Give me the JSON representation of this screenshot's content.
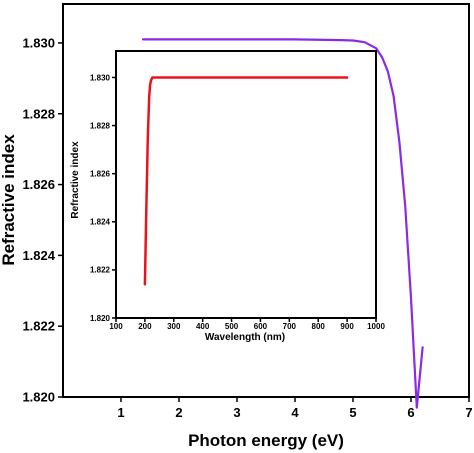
{
  "chart_data": [
    {
      "type": "line",
      "xlabel": "Photon energy (eV)",
      "ylabel": "Refractive index",
      "xlim": [
        0,
        7
      ],
      "ylim": [
        1.82,
        1.8311
      ],
      "x_ticks": [
        "1",
        "2",
        "3",
        "4",
        "5",
        "6",
        "7"
      ],
      "y_ticks": [
        "1.820",
        "1.822",
        "1.824",
        "1.826",
        "1.828",
        "1.830"
      ],
      "series": [
        {
          "color": "#8a2be2",
          "x": [
            1.38,
            2.0,
            3.0,
            4.0,
            4.8,
            5.0,
            5.2,
            5.4,
            5.5,
            5.6,
            5.7,
            5.8,
            5.9,
            6.0,
            6.1,
            6.2
          ],
          "y": [
            1.8301,
            1.8301,
            1.8301,
            1.8301,
            1.83008,
            1.83007,
            1.83002,
            1.82985,
            1.8296,
            1.8292,
            1.8285,
            1.8272,
            1.8254,
            1.8228,
            1.8197,
            1.8214
          ]
        }
      ]
    },
    {
      "type": "line",
      "xlabel": "Wavelength (nm)",
      "ylabel": "Refractive index",
      "xlim": [
        100,
        1000
      ],
      "ylim": [
        1.82,
        1.8311
      ],
      "x_ticks": [
        "100",
        "200",
        "300",
        "400",
        "500",
        "600",
        "700",
        "800",
        "900",
        "1000"
      ],
      "y_ticks": [
        "1.820",
        "1.822",
        "1.824",
        "1.826",
        "1.828",
        "1.830"
      ],
      "series": [
        {
          "color": "#e8141b",
          "x": [
            200,
            205,
            210,
            215,
            218,
            222,
            226,
            232,
            240,
            260,
            300,
            400,
            600,
            800,
            900
          ],
          "y": [
            1.8214,
            1.8245,
            1.8275,
            1.8292,
            1.8297,
            1.8299,
            1.83,
            1.83,
            1.83,
            1.83,
            1.83,
            1.83,
            1.83,
            1.83,
            1.83
          ]
        }
      ]
    }
  ]
}
